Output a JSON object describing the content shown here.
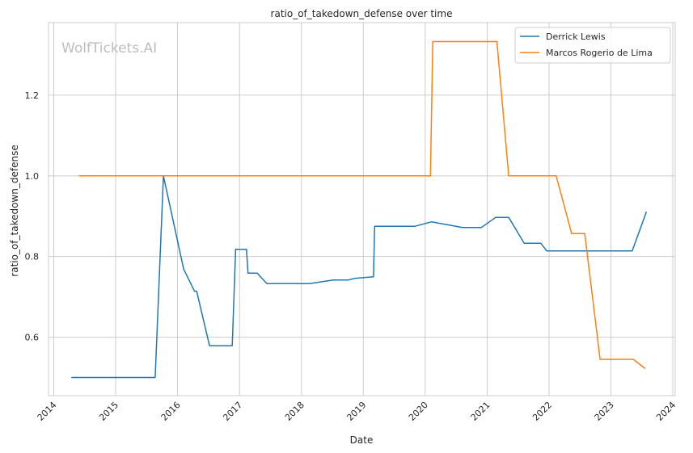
{
  "watermark": "WolfTickets.AI",
  "chart_data": {
    "type": "line",
    "title": "ratio_of_takedown_defense over time",
    "xlabel": "Date",
    "ylabel": "ratio_of_takedown_defense",
    "x_type": "date",
    "xlim": [
      "2013-12-01",
      "2024-01-15"
    ],
    "ylim": [
      0.455,
      1.38
    ],
    "x_ticks": [
      "2014",
      "2015",
      "2016",
      "2017",
      "2018",
      "2019",
      "2020",
      "2021",
      "2022",
      "2023",
      "2024"
    ],
    "y_ticks": [
      0.6,
      0.8,
      1.0,
      1.2
    ],
    "y_tick_labels": [
      "0.6",
      "0.8",
      "1.0",
      "1.2"
    ],
    "grid": true,
    "legend_position": "top-right",
    "series": [
      {
        "name": "Derrick Lewis",
        "color": "#1f77b4",
        "points": [
          [
            "2014-04-15",
            0.5
          ],
          [
            "2015-08-22",
            0.5
          ],
          [
            "2015-10-10",
            1.0
          ],
          [
            "2016-02-06",
            0.769
          ],
          [
            "2016-04-10",
            0.714
          ],
          [
            "2016-04-23",
            0.714
          ],
          [
            "2016-07-08",
            0.579
          ],
          [
            "2016-11-19",
            0.579
          ],
          [
            "2016-12-09",
            0.818
          ],
          [
            "2017-02-11",
            0.818
          ],
          [
            "2017-02-20",
            0.759
          ],
          [
            "2017-04-15",
            0.759
          ],
          [
            "2017-06-11",
            0.733
          ],
          [
            "2018-02-18",
            0.733
          ],
          [
            "2018-07-07",
            0.742
          ],
          [
            "2018-10-06",
            0.742
          ],
          [
            "2018-11-10",
            0.746
          ],
          [
            "2019-03-02",
            0.75
          ],
          [
            "2019-03-09",
            0.875
          ],
          [
            "2019-11-02",
            0.875
          ],
          [
            "2020-02-08",
            0.886
          ],
          [
            "2020-08-08",
            0.872
          ],
          [
            "2020-11-28",
            0.872
          ],
          [
            "2021-02-20",
            0.897
          ],
          [
            "2021-05-08",
            0.897
          ],
          [
            "2021-08-07",
            0.833
          ],
          [
            "2021-11-13",
            0.833
          ],
          [
            "2021-12-18",
            0.814
          ],
          [
            "2023-05-06",
            0.814
          ],
          [
            "2023-07-29",
            0.911
          ]
        ]
      },
      {
        "name": "Marcos Rogerio de Lima",
        "color": "#ff7f0e",
        "points": [
          [
            "2014-05-31",
            1.0
          ],
          [
            "2020-02-01",
            1.0
          ],
          [
            "2020-02-15",
            1.333
          ],
          [
            "2021-02-27",
            1.333
          ],
          [
            "2021-05-08",
            1.0
          ],
          [
            "2022-02-12",
            1.0
          ],
          [
            "2022-05-14",
            0.857
          ],
          [
            "2022-07-30",
            0.857
          ],
          [
            "2022-10-29",
            0.545
          ],
          [
            "2023-05-13",
            0.545
          ],
          [
            "2023-07-22",
            0.522
          ]
        ]
      }
    ]
  }
}
